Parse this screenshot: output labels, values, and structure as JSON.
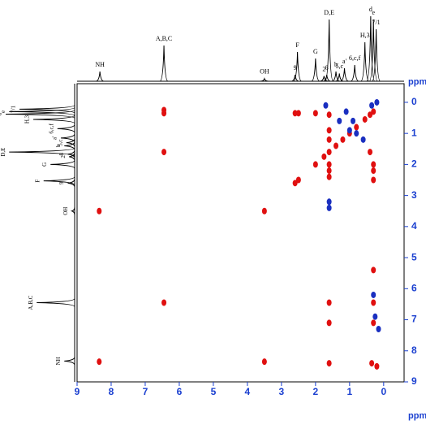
{
  "chart_data": {
    "type": "nmr2d",
    "xlim": [
      9,
      -0.6
    ],
    "ylim": [
      -0.6,
      9
    ],
    "xticks": [
      9,
      8,
      7,
      6,
      5,
      4,
      3,
      2,
      1,
      0
    ],
    "yticks": [
      0,
      1,
      2,
      3,
      4,
      5,
      6,
      7,
      8,
      9
    ],
    "x_unit": "ppm",
    "y_unit": "ppm",
    "tick_color": "#1a3fd0",
    "projection": {
      "color": "#000000",
      "x": [
        8.33,
        6.45,
        3.5,
        2.6,
        2.53,
        2.0,
        1.75,
        1.67,
        1.6,
        1.4,
        1.3,
        1.15,
        0.85,
        0.55,
        0.38,
        0.3,
        0.22
      ],
      "heights": [
        0.15,
        0.55,
        0.04,
        0.1,
        0.45,
        0.35,
        0.08,
        0.1,
        0.95,
        0.15,
        0.12,
        0.2,
        0.25,
        0.6,
        1.0,
        0.95,
        0.8
      ],
      "labels": [
        "NH",
        "A,B,C",
        "OH",
        "9",
        "F",
        "G",
        "2",
        "8",
        "D,E",
        "b",
        "5,c",
        "a'",
        "6,c,f",
        "H,3",
        "d",
        "e",
        "7/1"
      ]
    },
    "positive": {
      "color": "#e01010",
      "x": [
        8.35,
        6.45,
        3.5,
        2.6,
        2.5,
        2.0,
        1.75,
        1.6,
        1.4,
        1.2,
        1.0,
        0.8,
        0.55,
        0.4,
        0.3,
        6.45,
        6.45,
        6.45,
        0.3,
        1.6,
        8.35,
        3.5,
        0.35,
        1.6,
        0.3,
        1.6,
        0.3,
        0.2,
        1.6,
        1.6,
        1.6,
        0.4,
        2.0,
        2.5,
        2.6,
        0.3,
        0.3,
        0.3,
        1.6,
        1.6,
        1.6
      ],
      "y": [
        8.35,
        6.45,
        3.5,
        2.6,
        2.5,
        2.0,
        1.75,
        1.6,
        1.4,
        1.2,
        1.0,
        0.8,
        0.55,
        0.4,
        0.3,
        0.25,
        0.35,
        1.6,
        6.45,
        6.45,
        3.5,
        8.35,
        8.4,
        8.4,
        5.4,
        7.1,
        7.1,
        8.5,
        0.4,
        0.9,
        1.2,
        1.6,
        0.35,
        0.35,
        0.35,
        2.0,
        2.5,
        2.2,
        2.0,
        2.2,
        2.4
      ]
    },
    "negative": {
      "color": "#1a2fc0",
      "x": [
        1.6,
        1.6,
        0.3,
        0.25,
        0.15,
        1.1,
        0.9,
        1.3,
        0.6,
        1.0,
        0.2,
        0.35,
        1.7,
        0.8
      ],
      "y": [
        3.2,
        3.4,
        6.2,
        6.9,
        7.3,
        0.3,
        0.6,
        0.6,
        1.2,
        0.9,
        0.0,
        0.1,
        0.1,
        1.0
      ]
    }
  }
}
